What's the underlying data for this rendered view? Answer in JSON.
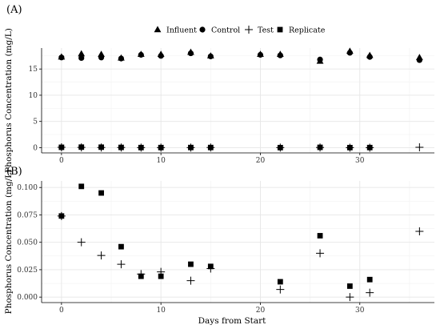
{
  "figure": {
    "x_axis_title": "Days from Start",
    "y_axis_title": "Phosphorus Concentration (mg/L)"
  },
  "legend": {
    "entries": [
      {
        "label": "Influent",
        "marker": "triangle"
      },
      {
        "label": "Control",
        "marker": "circle"
      },
      {
        "label": "Test",
        "marker": "plus"
      },
      {
        "label": "Replicate",
        "marker": "square"
      }
    ]
  },
  "chart_data": [
    {
      "type": "scatter",
      "panel_label": "(A)",
      "title": "",
      "xlabel": "",
      "ylabel": "Phosphorus Concentration (mg/L)",
      "xlim": [
        -2,
        37.5
      ],
      "ylim": [
        -1,
        19
      ],
      "x_ticks": [
        0,
        10,
        20,
        30
      ],
      "y_ticks": [
        0,
        5,
        10,
        15
      ],
      "x_tick_labels": [
        "0",
        "10",
        "20",
        "30"
      ],
      "y_tick_labels": [
        "0",
        "5",
        "10",
        "15"
      ],
      "grid": true,
      "legend": "top",
      "series": [
        {
          "name": "Influent",
          "marker": "triangle",
          "x": [
            0,
            2,
            4,
            6,
            8,
            10,
            13,
            15,
            20,
            22,
            26,
            29,
            31,
            36
          ],
          "y": [
            17.3,
            17.9,
            17.8,
            17.1,
            17.8,
            17.8,
            18.2,
            17.5,
            17.8,
            17.8,
            16.5,
            18.4,
            17.6,
            17.2
          ]
        },
        {
          "name": "Control",
          "marker": "circle",
          "x": [
            0,
            2,
            4,
            6,
            8,
            10,
            13,
            15,
            20,
            22,
            26,
            29,
            31,
            36
          ],
          "y": [
            17.2,
            17.1,
            17.2,
            17.0,
            17.7,
            17.5,
            18.0,
            17.4,
            17.7,
            17.6,
            16.8,
            18.1,
            17.3,
            16.7
          ]
        },
        {
          "name": "Test",
          "marker": "plus",
          "x": [
            0,
            2,
            4,
            6,
            8,
            10,
            13,
            15,
            22,
            26,
            29,
            31,
            36
          ],
          "y": [
            0.07,
            0.05,
            0.04,
            0.03,
            0.02,
            0.02,
            0.02,
            0.03,
            0.01,
            0.04,
            0.0,
            0.0,
            0.06
          ]
        },
        {
          "name": "Replicate",
          "marker": "square",
          "x": [
            0,
            2,
            4,
            6,
            8,
            10,
            13,
            15,
            22,
            26,
            29,
            31
          ],
          "y": [
            0.07,
            0.1,
            0.09,
            0.05,
            0.02,
            0.02,
            0.03,
            0.03,
            0.01,
            0.06,
            0.01,
            0.02
          ]
        }
      ]
    },
    {
      "type": "scatter",
      "panel_label": "(B)",
      "title": "",
      "xlabel": "Days from Start",
      "ylabel": "Phosphorus Concentration (mg/L)",
      "xlim": [
        -2,
        37.5
      ],
      "ylim": [
        -0.005,
        0.106
      ],
      "x_ticks": [
        0,
        10,
        20,
        30
      ],
      "y_ticks": [
        0.0,
        0.025,
        0.05,
        0.075,
        0.1
      ],
      "x_tick_labels": [
        "0",
        "10",
        "20",
        "30"
      ],
      "y_tick_labels": [
        "0.000",
        "0.025",
        "0.050",
        "0.075",
        "0.100"
      ],
      "grid": true,
      "legend": "none",
      "series": [
        {
          "name": "Test",
          "marker": "plus",
          "x": [
            0,
            2,
            4,
            6,
            8,
            10,
            13,
            15,
            22,
            26,
            29,
            31,
            36
          ],
          "y": [
            0.074,
            0.05,
            0.038,
            0.03,
            0.021,
            0.023,
            0.015,
            0.026,
            0.007,
            0.04,
            0.0,
            0.004,
            0.06
          ]
        },
        {
          "name": "Replicate",
          "marker": "square",
          "x": [
            0,
            2,
            4,
            6,
            8,
            10,
            13,
            15,
            22,
            26,
            29,
            31
          ],
          "y": [
            0.074,
            0.101,
            0.095,
            0.046,
            0.019,
            0.019,
            0.03,
            0.028,
            0.014,
            0.056,
            0.01,
            0.016
          ]
        }
      ]
    }
  ]
}
